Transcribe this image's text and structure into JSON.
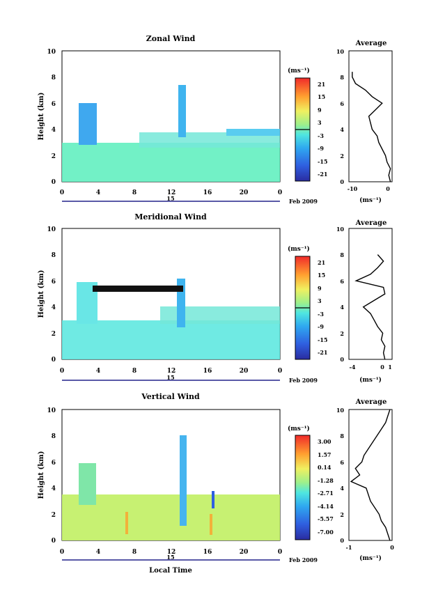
{
  "x_axis_title": "Local Time",
  "height_label": "Height (km)",
  "units_label": "(ms⁻¹)",
  "day_label": "15",
  "month_label": "Feb 2009",
  "chart_data": [
    {
      "type": "heatmap",
      "title": "Zonal Wind",
      "xlabel": "",
      "ylabel": "Height (km)",
      "xlim": [
        0,
        24
      ],
      "ylim": [
        0,
        10
      ],
      "xticks": [
        "0",
        "4",
        "8",
        "12",
        "16",
        "20",
        "0"
      ],
      "yticks": [
        "0",
        "2",
        "4",
        "6",
        "8",
        "10"
      ],
      "colorbar": {
        "label": "(ms⁻¹)",
        "ticks": [
          "21",
          "15",
          "9",
          "3",
          "-3",
          "-9",
          "-15",
          "-21"
        ],
        "zero_line_at": "3/-3"
      },
      "regions": [
        {
          "t_start": 0,
          "t_end": 24,
          "h_start": 0,
          "h_end": 3.0,
          "value": 0
        },
        {
          "t_start": 2,
          "t_end": 3.5,
          "h_start": 3.0,
          "h_end": 6.0,
          "value": -6
        },
        {
          "t_start": 7.5,
          "t_end": 24,
          "h_start": 3.5,
          "h_end": 4.5,
          "value": -1
        },
        {
          "t_start": 12.8,
          "t_end": 13.5,
          "h_start": 4.0,
          "h_end": 7.5,
          "value": -5
        }
      ],
      "average": {
        "title": "Average",
        "xlabel": "(ms⁻¹)",
        "xticks": [
          "-10",
          "0"
        ],
        "xlim": [
          -11,
          2
        ],
        "yticks": [
          "0",
          "2",
          "4",
          "6",
          "8",
          "10"
        ],
        "h": [
          0,
          0.5,
          1,
          1.5,
          2,
          2.5,
          3,
          3.5,
          4,
          4.5,
          5,
          5.5,
          6,
          6.5,
          7,
          7.5,
          8,
          8.4
        ],
        "v": [
          1.5,
          1,
          1.5,
          0.5,
          0,
          -1,
          -2,
          -2.5,
          -4,
          -4.5,
          -5,
          -3,
          -1,
          -4,
          -6,
          -9,
          -10,
          -10
        ]
      }
    },
    {
      "type": "heatmap",
      "title": "Meridional Wind",
      "xlabel": "",
      "ylabel": "Height (km)",
      "xlim": [
        0,
        24
      ],
      "ylim": [
        0,
        10
      ],
      "xticks": [
        "0",
        "4",
        "8",
        "12",
        "16",
        "20",
        "0"
      ],
      "yticks": [
        "0",
        "2",
        "4",
        "6",
        "8",
        "10"
      ],
      "colorbar": {
        "label": "(ms⁻¹)",
        "ticks": [
          "21",
          "15",
          "9",
          "3",
          "-3",
          "-9",
          "-15",
          "-21"
        ],
        "zero_line_at": "3/-3"
      },
      "regions": [
        {
          "t_start": 0,
          "t_end": 24,
          "h_start": 0,
          "h_end": 3.0,
          "value": -1
        },
        {
          "t_start": 1.5,
          "t_end": 3.5,
          "h_start": 3.0,
          "h_end": 6.0,
          "value": -2
        },
        {
          "t_start": 9,
          "t_end": 24,
          "h_start": 3.0,
          "h_end": 4.0,
          "value": -1
        },
        {
          "t_start": 12.5,
          "t_end": 13.3,
          "h_start": 2.5,
          "h_end": 6.0,
          "value": -4
        }
      ],
      "average": {
        "title": "Average",
        "xlabel": "(ms⁻¹)",
        "xticks": [
          "-4",
          "0",
          "1"
        ],
        "xlim": [
          -4.5,
          1.5
        ],
        "yticks": [
          "0",
          "2",
          "4",
          "6",
          "8",
          "10"
        ],
        "h": [
          0,
          0.5,
          1,
          1.5,
          2,
          2.5,
          3,
          3.5,
          4,
          4.5,
          5,
          5.5,
          6,
          6.5,
          7,
          7.5,
          8
        ],
        "v": [
          0.5,
          0.3,
          0.5,
          0,
          0.2,
          -0.5,
          -1,
          -1.5,
          -2.5,
          -1,
          0.5,
          0.3,
          -3.5,
          -1.5,
          -0.5,
          0.3,
          -0.5
        ]
      }
    },
    {
      "type": "heatmap",
      "title": "Vertical Wind",
      "xlabel": "Local Time",
      "ylabel": "Height (km)",
      "xlim": [
        0,
        24
      ],
      "ylim": [
        0,
        10
      ],
      "xticks": [
        "0",
        "4",
        "8",
        "12",
        "16",
        "20",
        "0"
      ],
      "yticks": [
        "0",
        "2",
        "4",
        "6",
        "8",
        "10"
      ],
      "colorbar": {
        "label": "(ms⁻¹)",
        "ticks": [
          "3.00",
          "1.57",
          "0.14",
          "-1.28",
          "-2.71",
          "-4.14",
          "-5.57",
          "-7.00"
        ]
      },
      "regions": [
        {
          "t_start": 0,
          "t_end": 24,
          "h_start": 0,
          "h_end": 3.5,
          "value": 0.1
        },
        {
          "t_start": 2,
          "t_end": 3.5,
          "h_start": 2.5,
          "h_end": 6.0,
          "value": -1.5
        },
        {
          "t_start": 12.8,
          "t_end": 13.5,
          "h_start": 1,
          "h_end": 8.3,
          "value": -3
        },
        {
          "t_start": 16.3,
          "t_end": 16.6,
          "h_start": 2.5,
          "h_end": 4.0,
          "value": -4.5
        }
      ],
      "average": {
        "title": "Average",
        "xlabel": "(ms⁻¹)",
        "xticks": [
          "-1",
          "0"
        ],
        "xlim": [
          -1,
          0
        ],
        "yticks": [
          "0",
          "2",
          "4",
          "6",
          "8",
          "10"
        ],
        "h": [
          0,
          0.5,
          1,
          1.5,
          2,
          2.5,
          3,
          3.5,
          4,
          4.5,
          5,
          5.5,
          6,
          6.5,
          7,
          7.5,
          8,
          8.5,
          9,
          9.5,
          10
        ],
        "v": [
          -0.05,
          -0.1,
          -0.15,
          -0.25,
          -0.3,
          -0.4,
          -0.5,
          -0.55,
          -0.6,
          -0.95,
          -0.75,
          -0.85,
          -0.7,
          -0.65,
          -0.55,
          -0.45,
          -0.35,
          -0.25,
          -0.15,
          -0.1,
          -0.05
        ]
      }
    }
  ]
}
